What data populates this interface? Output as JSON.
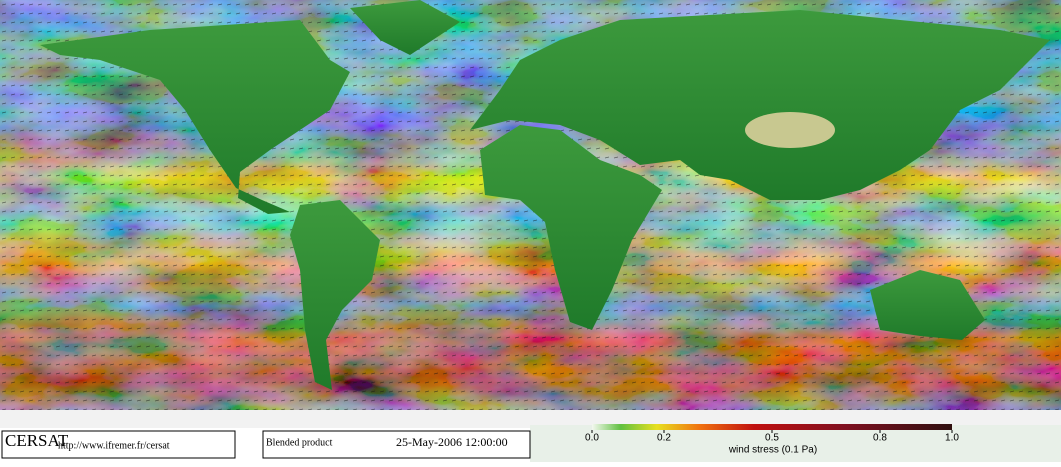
{
  "footer": {
    "logo": "CERSAT",
    "url": "http://www.ifremer.fr/cersat",
    "product": "Blended product",
    "date": "25-May-2006 12:00:00"
  },
  "colorbar": {
    "label": "wind stress (0.1 Pa)",
    "lim": [
      0,
      1
    ],
    "ticks": [
      {
        "value": 0,
        "label": "0.0"
      },
      {
        "value": 0.2,
        "label": "0.2"
      },
      {
        "value": 0.5,
        "label": "0.5"
      },
      {
        "value": 0.8,
        "label": "0.8"
      },
      {
        "value": 1,
        "label": "1.0"
      }
    ]
  }
}
